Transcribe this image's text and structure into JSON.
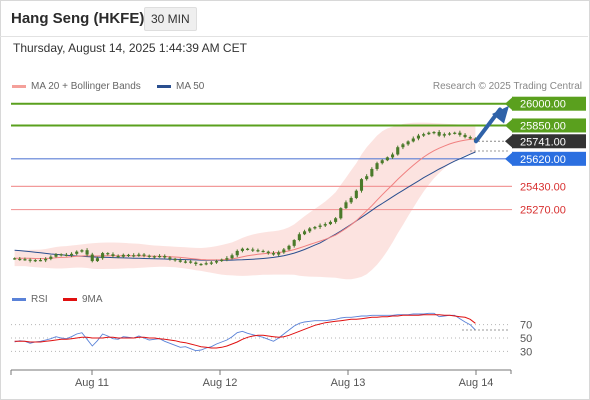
{
  "header": {
    "title": "Hang Seng (HKFE)",
    "interval": "30 MIN",
    "timestamp": "Thursday, August 14, 2025 1:44:39 AM CET"
  },
  "legend": {
    "ma20": "MA 20 + Bollinger Bands",
    "ma50": "MA 50",
    "credit": "Research © 2025 Trading Central"
  },
  "colors": {
    "candle": "#4a7a2a",
    "ma20": "#f08080",
    "bollinger_fill": "#fbd9d6",
    "ma50": "#2a4f8f",
    "resistance": "#5aa01e",
    "support_blue": "#5b7fd6",
    "support_red": "#f29a9a",
    "rsi": "#5a82d8",
    "rsi_ma": "#e01010",
    "last_price_tag": "#333333",
    "arrow": "#2f62a8"
  },
  "chart_data": [
    {
      "type": "candlestick",
      "title": "Hang Seng (HKFE)",
      "xlabel": "",
      "ylabel": "",
      "ylim": [
        24750,
        26060
      ],
      "x_tick_labels": [
        "Aug 11",
        "Aug 12",
        "Aug 13",
        "Aug 14"
      ],
      "levels": [
        {
          "value": 26000,
          "label": "26000.00",
          "kind": "resistance"
        },
        {
          "value": 25850,
          "label": "25850.00",
          "kind": "resistance"
        },
        {
          "value": 25741,
          "label": "25741.00",
          "kind": "last"
        },
        {
          "value": 25620,
          "label": "25620.00",
          "kind": "pivot"
        },
        {
          "value": 25430,
          "label": "25430.00",
          "kind": "support"
        },
        {
          "value": 25270,
          "label": "25270.00",
          "kind": "support"
        }
      ],
      "close": [
        24930,
        24928,
        24925,
        24918,
        24922,
        24920,
        24930,
        24945,
        24962,
        24958,
        24955,
        24965,
        24980,
        24990,
        24960,
        24915,
        24935,
        24970,
        24962,
        24950,
        24945,
        24958,
        24955,
        24950,
        24960,
        24952,
        24945,
        24948,
        24950,
        24940,
        24930,
        24920,
        24910,
        24912,
        24905,
        24895,
        24893,
        24900,
        24905,
        24915,
        24925,
        24935,
        24955,
        24985,
        25000,
        24995,
        24990,
        24985,
        24980,
        24970,
        24960,
        24975,
        24995,
        25020,
        25060,
        25100,
        25120,
        25140,
        25150,
        25160,
        25170,
        25185,
        25210,
        25280,
        25320,
        25350,
        25400,
        25480,
        25500,
        25550,
        25590,
        25610,
        25630,
        25650,
        25700,
        25720,
        25740,
        25760,
        25780,
        25790,
        25800,
        25805,
        25780,
        25790,
        25795,
        25800,
        25785,
        25770,
        25760,
        25741
      ],
      "ma20": [
        24935,
        24935,
        24935,
        24934,
        24933,
        24932,
        24933,
        24935,
        24938,
        24940,
        24942,
        24945,
        24948,
        24950,
        24951,
        24950,
        24950,
        24951,
        24952,
        24952,
        24952,
        24952,
        24952,
        24951,
        24951,
        24950,
        24949,
        24948,
        24948,
        24947,
        24945,
        24943,
        24940,
        24937,
        24933,
        24929,
        24926,
        24924,
        24923,
        24923,
        24924,
        24926,
        24930,
        24936,
        24944,
        24951,
        24957,
        24962,
        24966,
        24969,
        24971,
        24974,
        24978,
        24985,
        24994,
        25005,
        25017,
        25029,
        25041,
        25053,
        25065,
        25079,
        25095,
        25117,
        25140,
        25165,
        25193,
        25228,
        25262,
        25297,
        25335,
        25372,
        25408,
        25442,
        25478,
        25512,
        25545,
        25575,
        25605,
        25632,
        25655,
        25676,
        25693,
        25708,
        25722,
        25733,
        25742,
        25749,
        25754,
        25757
      ],
      "bollinger_upper": [
        24990,
        24990,
        24990,
        24992,
        24993,
        24994,
        24998,
        25005,
        25012,
        25016,
        25018,
        25022,
        25026,
        25030,
        25035,
        25038,
        25040,
        25042,
        25043,
        25043,
        25042,
        25040,
        25038,
        25036,
        25034,
        25030,
        25026,
        25022,
        25020,
        25018,
        25016,
        25014,
        25012,
        25010,
        25008,
        25006,
        25005,
        25008,
        25012,
        25018,
        25026,
        25034,
        25044,
        25058,
        25075,
        25088,
        25098,
        25106,
        25112,
        25117,
        25120,
        25126,
        25134,
        25148,
        25168,
        25196,
        25224,
        25250,
        25275,
        25300,
        25326,
        25356,
        25390,
        25440,
        25490,
        25540,
        25590,
        25650,
        25700,
        25740,
        25780,
        25810,
        25830,
        25840,
        25850,
        25860,
        25865,
        25868,
        25870,
        25870,
        25868,
        25866,
        25864,
        25862,
        25860,
        25858,
        25856,
        25854,
        25852,
        25850
      ],
      "bollinger_lower": [
        24880,
        24880,
        24880,
        24876,
        24873,
        24870,
        24868,
        24865,
        24864,
        24864,
        24866,
        24868,
        24870,
        24870,
        24867,
        24862,
        24860,
        24860,
        24861,
        24861,
        24862,
        24864,
        24866,
        24866,
        24868,
        24870,
        24872,
        24874,
        24876,
        24876,
        24874,
        24872,
        24868,
        24864,
        24858,
        24852,
        24847,
        24840,
        24834,
        24828,
        24822,
        24818,
        24816,
        24814,
        24813,
        24814,
        24816,
        24818,
        24820,
        24821,
        24822,
        24822,
        24822,
        24822,
        24820,
        24814,
        24810,
        24808,
        24807,
        24806,
        24804,
        24802,
        24800,
        24794,
        24790,
        24790,
        24796,
        24806,
        24824,
        24854,
        24890,
        24934,
        24986,
        25044,
        25106,
        25164,
        25225,
        25282,
        25340,
        25394,
        25442,
        25486,
        25522,
        25554,
        25584,
        25608,
        25628,
        25644,
        25656,
        25664
      ],
      "ma50": [
        24990,
        24987,
        24984,
        24980,
        24976,
        24972,
        24968,
        24964,
        24961,
        24958,
        24955,
        24952,
        24950,
        24948,
        24946,
        24944,
        24942,
        24941,
        24940,
        24939,
        24938,
        24937,
        24936,
        24935,
        24934,
        24933,
        24932,
        24931,
        24930,
        24929,
        24928,
        24927,
        24926,
        24925,
        24924,
        24923,
        24922,
        24921,
        24920,
        24920,
        24920,
        24921,
        24922,
        24923,
        24924,
        24926,
        24928,
        24930,
        24933,
        24936,
        24940,
        24946,
        24952,
        24960,
        24970,
        24982,
        24995,
        25010,
        25025,
        25040,
        25060,
        25080,
        25100,
        25122,
        25145,
        25168,
        25192,
        25216,
        25240,
        25265,
        25290,
        25312,
        25335,
        25358,
        25380,
        25402,
        25424,
        25446,
        25468,
        25490,
        25510,
        25530,
        25550,
        25568,
        25586,
        25604,
        25620,
        25636,
        25652,
        25667
      ]
    },
    {
      "type": "line",
      "title": "RSI",
      "series": [
        {
          "name": "RSI"
        },
        {
          "name": "9MA"
        }
      ],
      "ylim": [
        5,
        95
      ],
      "y_ticks": [
        30,
        50,
        70
      ],
      "rsi": [
        44,
        46,
        45,
        42,
        44,
        45,
        47,
        49,
        52,
        50,
        49,
        52,
        56,
        58,
        48,
        38,
        46,
        56,
        53,
        49,
        48,
        52,
        51,
        50,
        53,
        50,
        47,
        48,
        49,
        45,
        42,
        39,
        36,
        37,
        34,
        31,
        32,
        35,
        37,
        41,
        44,
        47,
        52,
        58,
        60,
        57,
        55,
        53,
        51,
        48,
        45,
        50,
        56,
        62,
        68,
        72,
        74,
        75,
        76,
        76,
        76,
        77,
        78,
        80,
        81,
        81,
        82,
        83,
        83,
        84,
        84,
        84,
        84,
        84,
        85,
        85,
        85,
        86,
        86,
        86,
        87,
        87,
        82,
        83,
        84,
        84,
        79,
        74,
        70,
        62
      ],
      "rsi_ma": [
        45,
        45,
        45,
        44,
        44,
        44,
        45,
        46,
        47,
        48,
        48,
        49,
        50,
        51,
        51,
        50,
        50,
        50,
        51,
        51,
        50,
        50,
        50,
        50,
        51,
        51,
        50,
        50,
        49,
        48,
        47,
        46,
        44,
        43,
        41,
        39,
        37,
        36,
        35,
        35,
        36,
        38,
        41,
        44,
        48,
        51,
        53,
        54,
        54,
        53,
        52,
        51,
        52,
        54,
        57,
        60,
        63,
        66,
        69,
        71,
        73,
        74,
        75,
        76,
        77,
        78,
        78,
        79,
        80,
        81,
        81,
        82,
        82,
        83,
        83,
        84,
        84,
        84,
        84,
        85,
        85,
        85,
        85,
        84,
        84,
        83,
        82,
        81,
        78,
        72
      ]
    }
  ]
}
